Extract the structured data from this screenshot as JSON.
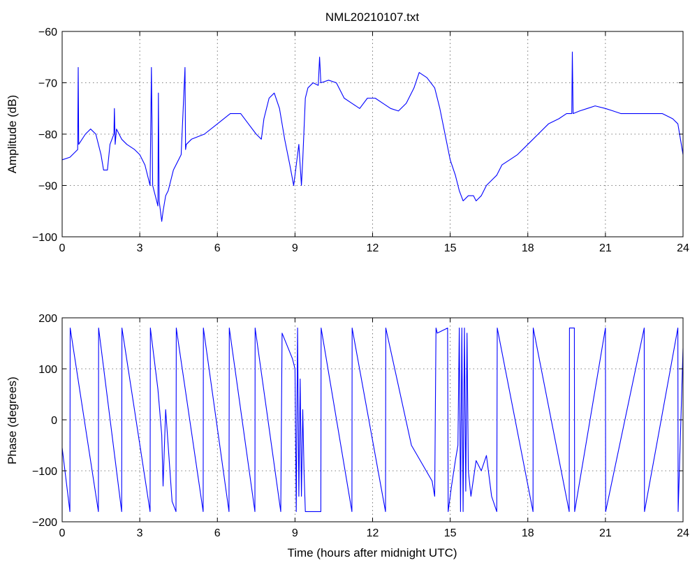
{
  "figure_title": "NML20210107.txt",
  "chart_data": [
    {
      "type": "line",
      "title": "NML20210107.txt",
      "xlabel": "",
      "ylabel": "Amplitude (dB)",
      "xlim": [
        0,
        24
      ],
      "ylim": [
        -100,
        -60
      ],
      "xticks": [
        0,
        3,
        6,
        9,
        12,
        15,
        18,
        21,
        24
      ],
      "yticks": [
        -100,
        -90,
        -80,
        -70,
        -60
      ],
      "grid": true,
      "color": "#0000ff",
      "series": [
        {
          "x": [
            0,
            0.3,
            0.6,
            0.62,
            0.64,
            0.9,
            1.1,
            1.3,
            1.5,
            1.6,
            1.75,
            1.85,
            2.0,
            2.02,
            2.05,
            2.1,
            2.2,
            2.3,
            2.5,
            2.8,
            3.0,
            3.2,
            3.4,
            3.45,
            3.5,
            3.7,
            3.72,
            3.75,
            3.85,
            3.9,
            4.0,
            4.1,
            4.3,
            4.6,
            4.75,
            4.77,
            4.8,
            5.0,
            5.5,
            6.0,
            6.5,
            6.9,
            7.2,
            7.5,
            7.7,
            7.8,
            8.0,
            8.2,
            8.4,
            8.6,
            8.8,
            8.95,
            9.0,
            9.15,
            9.25,
            9.3,
            9.4,
            9.5,
            9.7,
            9.9,
            9.95,
            10.0,
            10.3,
            10.6,
            10.9,
            11.2,
            11.5,
            11.8,
            12.1,
            12.4,
            12.7,
            13.0,
            13.3,
            13.6,
            13.8,
            14.1,
            14.4,
            14.6,
            14.8,
            15.0,
            15.2,
            15.35,
            15.5,
            15.7,
            15.9,
            16.0,
            16.2,
            16.4,
            16.6,
            16.8,
            17.0,
            17.3,
            17.6,
            18.0,
            18.4,
            18.8,
            19.2,
            19.5,
            19.7,
            19.72,
            19.75,
            20.0,
            20.3,
            20.6,
            21.0,
            21.3,
            21.6,
            22.0,
            22.4,
            22.8,
            23.2,
            23.6,
            23.8,
            24.0
          ],
          "y": [
            -85,
            -84.5,
            -83,
            -67,
            -82,
            -80,
            -79,
            -80,
            -84,
            -87,
            -87,
            -82,
            -80,
            -75,
            -82,
            -79,
            -80,
            -81,
            -82,
            -83,
            -84,
            -86,
            -90,
            -67,
            -90,
            -94,
            -72,
            -93,
            -97,
            -95,
            -92,
            -91,
            -87,
            -84,
            -67,
            -83,
            -82,
            -81,
            -80,
            -78,
            -76,
            -76,
            -78,
            -80,
            -81,
            -77,
            -73,
            -72,
            -75,
            -81,
            -86,
            -90,
            -88,
            -82,
            -90,
            -85,
            -73,
            -71,
            -70,
            -70.5,
            -65,
            -70,
            -69.5,
            -70,
            -73,
            -74,
            -75,
            -73,
            -73,
            -74,
            -75,
            -75.5,
            -74,
            -71,
            -68,
            -69,
            -71,
            -75,
            -80,
            -85,
            -88,
            -91,
            -93,
            -92,
            -92,
            -93,
            -92,
            -90,
            -89,
            -88,
            -86,
            -85,
            -84,
            -82,
            -80,
            -78,
            -77,
            -76,
            -76,
            -64,
            -76,
            -75.5,
            -75,
            -74.5,
            -75,
            -75.5,
            -76,
            -76,
            -76,
            -76,
            -76,
            -77,
            -78,
            -84
          ]
        }
      ]
    },
    {
      "type": "line",
      "title": "",
      "xlabel": "Time (hours after midnight UTC)",
      "ylabel": "Phase (degrees)",
      "xlim": [
        0,
        24
      ],
      "ylim": [
        -200,
        200
      ],
      "xticks": [
        0,
        3,
        6,
        9,
        12,
        15,
        18,
        21,
        24
      ],
      "yticks": [
        -200,
        -100,
        0,
        100,
        200
      ],
      "grid": true,
      "color": "#0000ff",
      "series": [
        {
          "x": [
            0,
            0.3,
            0.31,
            1.4,
            1.41,
            2.3,
            2.31,
            3.4,
            3.41,
            3.7,
            3.85,
            3.9,
            4.0,
            4.25,
            4.4,
            4.41,
            5.45,
            5.46,
            6.45,
            6.46,
            7.45,
            7.46,
            8.45,
            8.5,
            8.9,
            9.0,
            9.05,
            9.1,
            9.15,
            9.2,
            9.25,
            9.3,
            9.35,
            9.4,
            10.0,
            10.01,
            11.2,
            11.21,
            12.5,
            12.51,
            13.5,
            14.3,
            14.4,
            14.45,
            14.5,
            14.9,
            14.92,
            15.05,
            15.2,
            15.3,
            15.35,
            15.4,
            15.45,
            15.5,
            15.55,
            15.6,
            15.65,
            15.7,
            15.8,
            16.0,
            16.2,
            16.4,
            16.6,
            16.8,
            16.82,
            18.2,
            18.21,
            19.6,
            19.61,
            19.8,
            19.81,
            21.0,
            21.01,
            22.5,
            22.51,
            23.8,
            23.81,
            24.0
          ],
          "y": [
            -55,
            -180,
            180,
            -180,
            180,
            -180,
            180,
            -180,
            180,
            60,
            -30,
            -130,
            20,
            -160,
            -180,
            180,
            -180,
            180,
            -180,
            180,
            -180,
            180,
            -180,
            170,
            120,
            100,
            -180,
            180,
            -150,
            80,
            -150,
            20,
            -100,
            -180,
            -180,
            180,
            -180,
            180,
            -180,
            180,
            -50,
            -120,
            -150,
            180,
            170,
            180,
            -180,
            -130,
            -80,
            -50,
            180,
            -180,
            180,
            -180,
            180,
            -140,
            170,
            -100,
            -150,
            -80,
            -100,
            -70,
            -150,
            -180,
            180,
            -180,
            180,
            -180,
            180,
            180,
            -180,
            180,
            -180,
            180,
            -180,
            180,
            -180,
            140
          ]
        }
      ]
    }
  ]
}
